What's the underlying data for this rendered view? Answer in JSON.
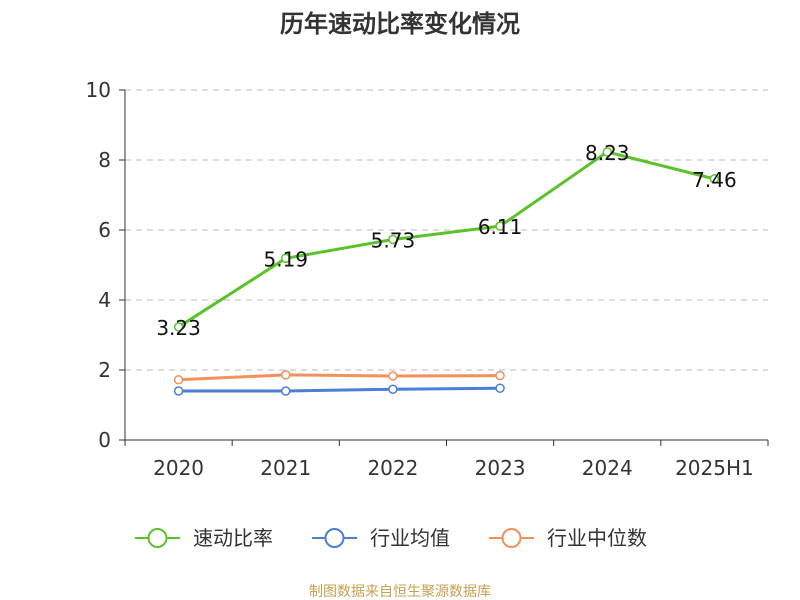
{
  "chart_data": {
    "type": "line",
    "title": "历年速动比率变化情况",
    "xlabel": "",
    "ylabel": "",
    "categories": [
      "2020",
      "2021",
      "2022",
      "2023",
      "2024",
      "2025H1"
    ],
    "ylim": [
      0,
      10
    ],
    "yticks": [
      0,
      2,
      4,
      6,
      8,
      10
    ],
    "grid": true,
    "legend_position": "bottom",
    "series": [
      {
        "name": "速动比率",
        "color": "#5bc22a",
        "values": [
          3.23,
          5.19,
          5.73,
          6.11,
          8.23,
          7.46
        ],
        "labels": [
          "3.23",
          "5.19",
          "5.73",
          "6.11",
          "8.23",
          "7.46"
        ]
      },
      {
        "name": "行业均值",
        "color": "#4a7fd8",
        "values": [
          1.4,
          1.4,
          1.45,
          1.48,
          null,
          null
        ]
      },
      {
        "name": "行业中位数",
        "color": "#f5905c",
        "values": [
          1.72,
          1.86,
          1.83,
          1.84,
          null,
          null
        ]
      }
    ]
  },
  "source": "制图数据来自恒生聚源数据库"
}
